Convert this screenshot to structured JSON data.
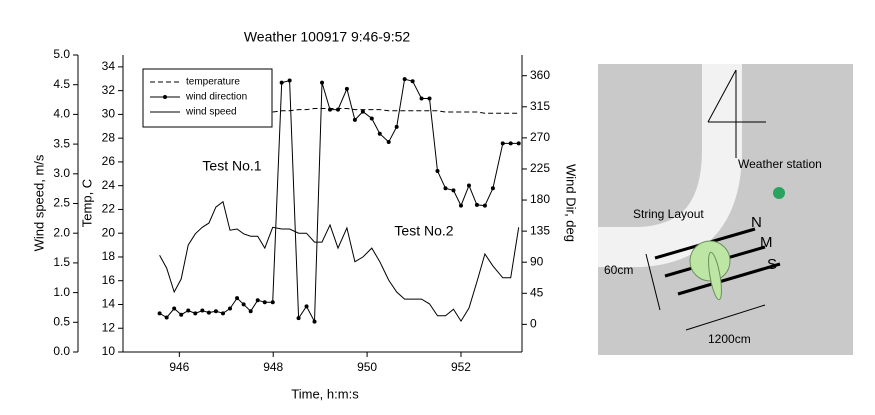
{
  "chart_data": {
    "type": "line",
    "title": "Weather 100917 9:46-9:52",
    "xlabel": "Time, h:m:s",
    "ylabel": "Wind speed, m/s",
    "y2label": "Temp, C",
    "y3label": "Wind Dir, deg",
    "annotations": [
      "Test No.1",
      "Test No.2"
    ],
    "x": [
      945.58,
      945.73,
      945.89,
      946.04,
      946.19,
      946.34,
      946.49,
      946.63,
      946.78,
      946.93,
      947.08,
      947.23,
      947.37,
      947.52,
      947.67,
      947.82,
      947.99,
      948.18,
      948.35,
      948.54,
      948.71,
      948.88,
      949.04,
      949.21,
      949.38,
      949.57,
      949.74,
      949.91,
      950.1,
      950.27,
      950.46,
      950.63,
      950.8,
      950.97,
      951.16,
      951.33,
      951.5,
      951.67,
      951.84,
      952.0,
      952.17,
      952.34,
      952.51,
      952.68,
      952.89,
      953.06,
      953.23
    ],
    "series": [
      {
        "name": "temperature",
        "color": "#000000",
        "linestyle": "dashed",
        "axis": "y2",
        "values": [
          null,
          null,
          null,
          null,
          null,
          null,
          null,
          null,
          null,
          null,
          null,
          null,
          null,
          null,
          null,
          null,
          30.2,
          30.3,
          30.3,
          30.4,
          30.4,
          30.5,
          30.5,
          30.5,
          30.5,
          30.5,
          30.4,
          30.4,
          30.4,
          30.4,
          30.3,
          30.3,
          30.3,
          30.3,
          30.3,
          30.3,
          30.3,
          30.2,
          30.2,
          30.2,
          30.2,
          30.2,
          30.1,
          30.1,
          30.1,
          30.1,
          30.1
        ]
      },
      {
        "name": "wind direction",
        "color": "#000000",
        "linestyle": "solid",
        "marker": "+",
        "axis": "y3",
        "values": [
          16,
          10,
          23,
          14,
          20,
          16,
          20,
          17,
          19,
          16,
          23,
          38,
          29,
          19,
          35,
          32,
          32,
          350,
          353,
          9,
          26,
          4,
          350,
          311,
          311,
          341,
          296,
          308,
          298,
          276,
          264,
          286,
          355,
          352,
          327,
          327,
          222,
          197,
          194,
          172,
          201,
          173,
          172,
          197,
          262,
          262,
          262
        ]
      },
      {
        "name": "wind speed",
        "color": "#000000",
        "linestyle": "solid",
        "axis": "y",
        "values": [
          1.63,
          1.41,
          1.01,
          1.23,
          1.8,
          1.99,
          2.1,
          2.17,
          2.44,
          2.53,
          2.05,
          2.07,
          1.99,
          1.95,
          1.95,
          1.75,
          2.1,
          2.07,
          2.07,
          2.0,
          2.0,
          1.85,
          1.85,
          2.14,
          1.75,
          2.09,
          1.52,
          1.6,
          1.75,
          1.52,
          1.21,
          1.01,
          0.89,
          0.89,
          0.89,
          0.81,
          0.61,
          0.61,
          0.72,
          0.52,
          0.74,
          1.18,
          1.65,
          1.45,
          1.25,
          1.25,
          2.1
        ]
      }
    ],
    "xlim": [
      944.8,
      953.3
    ],
    "xticks": [
      946,
      948,
      950,
      952
    ],
    "ylim": [
      0,
      5
    ],
    "yticks": [
      {
        "value": 0,
        "label": "0.0"
      },
      {
        "value": 0.5,
        "label": "0.5"
      },
      {
        "value": 1,
        "label": "1.0"
      },
      {
        "value": 1.5,
        "label": "1.5"
      },
      {
        "value": 2,
        "label": "2.0"
      },
      {
        "value": 2.5,
        "label": "2.5"
      },
      {
        "value": 3,
        "label": "3.0"
      },
      {
        "value": 3.5,
        "label": "3.5"
      },
      {
        "value": 4,
        "label": "4.0"
      },
      {
        "value": 4.5,
        "label": "4.5"
      },
      {
        "value": 5,
        "label": "5.0"
      }
    ],
    "y2lim": [
      10,
      35
    ],
    "y2ticks": [
      10,
      12,
      14,
      16,
      18,
      20,
      22,
      24,
      26,
      28,
      30,
      32,
      34
    ],
    "y3lim": [
      -40,
      390
    ],
    "y3ticks": [
      0,
      45,
      90,
      135,
      180,
      225,
      270,
      315,
      360
    ],
    "legend": "upper left",
    "grid": false
  },
  "diagram": {
    "station": "Weather station",
    "layout": "String Layout",
    "rows": [
      "N",
      "M",
      "S"
    ],
    "width": "60cm",
    "length": "1200cm"
  }
}
